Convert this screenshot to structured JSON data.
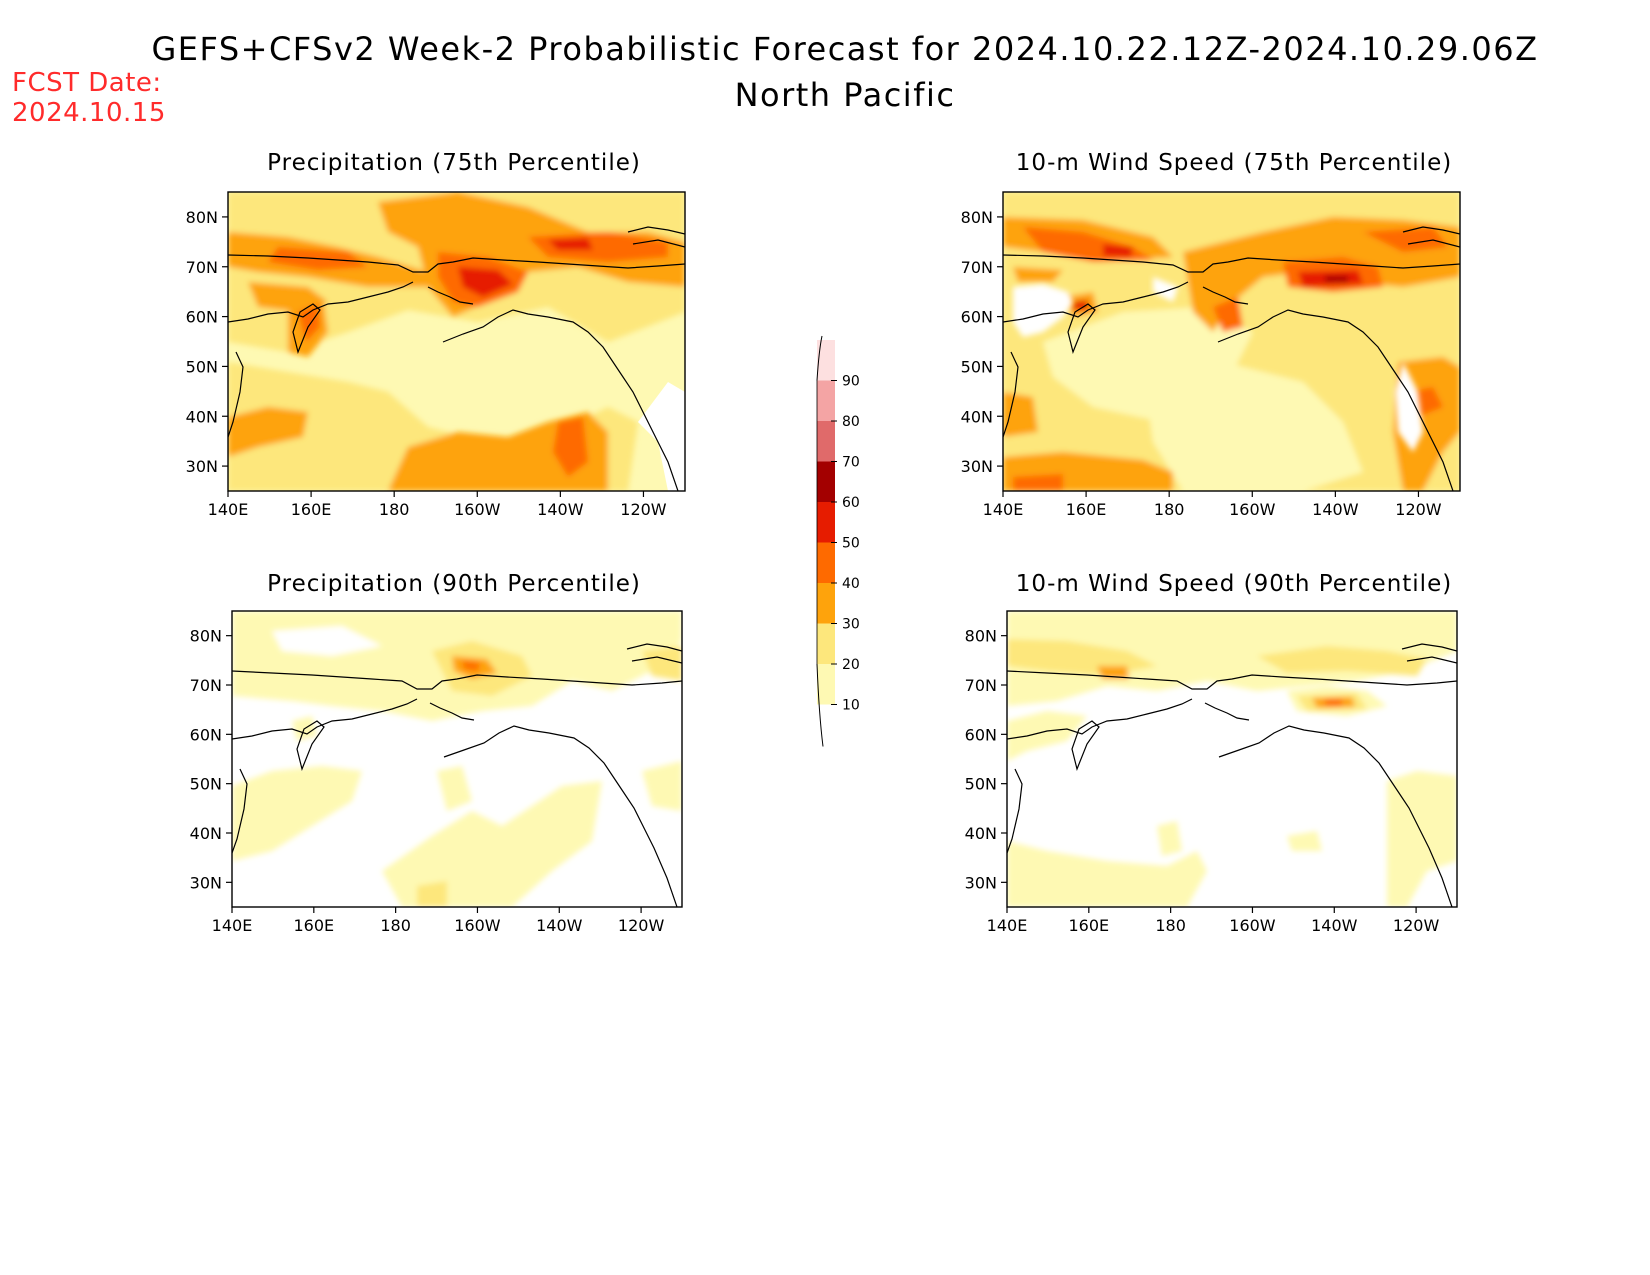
{
  "header": {
    "title": "GEFS+CFSv2 Week-2 Probabilistic Forecast for 2024.10.22.12Z-2024.10.29.06Z",
    "subtitle": "North Pacific",
    "fcst_label": "FCST Date:",
    "fcst_date": "2024.10.15"
  },
  "panels": [
    {
      "title": "Precipitation (75th Percentile)"
    },
    {
      "title": "10-m Wind Speed (75th Percentile)"
    },
    {
      "title": "Precipitation (90th Percentile)"
    },
    {
      "title": "10-m Wind Speed (90th Percentile)"
    }
  ],
  "axes": {
    "lon_labels": [
      "140E",
      "160E",
      "180",
      "160W",
      "140W",
      "120W"
    ],
    "lat_labels": [
      "80N",
      "70N",
      "60N",
      "50N",
      "40N",
      "30N"
    ]
  },
  "colorbar": {
    "levels": [
      "10",
      "20",
      "30",
      "40",
      "50",
      "60",
      "70",
      "80",
      "90"
    ],
    "colors": [
      "#fef9b3",
      "#fde77c",
      "#fea30c",
      "#fe6a00",
      "#e61c00",
      "#a30000",
      "#e06a6a",
      "#f4a4a4",
      "#fde0e0"
    ]
  }
}
